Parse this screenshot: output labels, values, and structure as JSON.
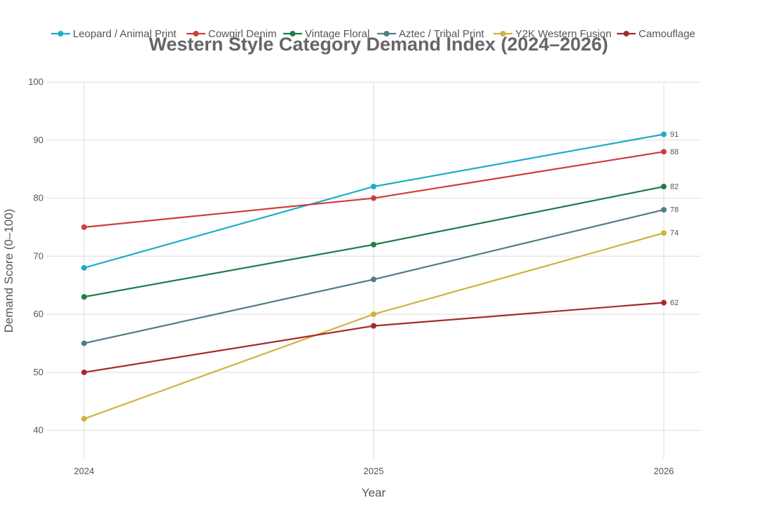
{
  "chart_data": {
    "type": "line",
    "title": "Western Style Category Demand Index (2024–2026)",
    "xlabel": "Year",
    "ylabel": "Demand Score (0–100)",
    "x": [
      "2024",
      "2025",
      "2026"
    ],
    "yticks": [
      "40",
      "50",
      "60",
      "70",
      "80",
      "90",
      "100"
    ],
    "ylim": [
      35,
      100
    ],
    "grid": true,
    "legend_position": "top",
    "series": [
      {
        "name": "Leopard / Animal Print",
        "color": "#1aaec6",
        "values": [
          68,
          82,
          91
        ],
        "end_label": "91"
      },
      {
        "name": "Cowgirl Denim",
        "color": "#d23b3b",
        "values": [
          75,
          80,
          88
        ],
        "end_label": "88"
      },
      {
        "name": "Vintage Floral",
        "color": "#1e7d4a",
        "values": [
          63,
          72,
          82
        ],
        "end_label": "82"
      },
      {
        "name": "Aztec / Tribal Print",
        "color": "#4f7d86",
        "values": [
          55,
          66,
          78
        ],
        "end_label": "78"
      },
      {
        "name": "Y2K Western Fusion",
        "color": "#d1b23d",
        "values": [
          42,
          60,
          74
        ],
        "end_label": "74"
      },
      {
        "name": "Camouflage",
        "color": "#a42b2b",
        "values": [
          50,
          58,
          62
        ],
        "end_label": "62"
      }
    ]
  }
}
